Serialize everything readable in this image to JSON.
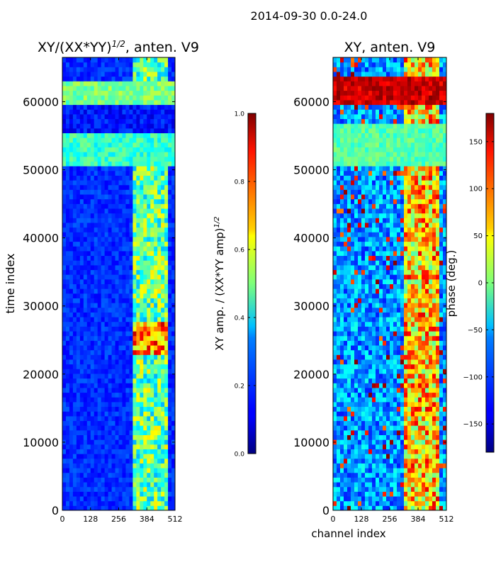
{
  "suptitle": "2014-09-30 0.0-24.0",
  "chart_data": [
    {
      "type": "heatmap",
      "title": "XY/(XX*YY)^1/2, anten. V9",
      "title_main": "XY/(XX*YY)",
      "title_exp": "1/2",
      "title_suffix": ", anten. V9",
      "xlabel": "",
      "ylabel": "time index",
      "xlim": [
        0,
        512
      ],
      "ylim": [
        0,
        66500
      ],
      "xticks": [
        0,
        128,
        256,
        384,
        512
      ],
      "yticks": [
        0,
        10000,
        20000,
        30000,
        40000,
        50000,
        60000
      ],
      "colorbar": {
        "label": "XY amp. / (XX*YY amp)^1/2",
        "label_main": "XY amp. / (XX*YY amp)",
        "label_exp": "1/2",
        "range": [
          0.0,
          1.0
        ],
        "ticks": [
          0.0,
          0.2,
          0.4,
          0.6,
          0.8,
          1.0
        ],
        "tick_labels": [
          "0.0",
          "0.2",
          "0.4",
          "0.6",
          "0.8",
          "1.0"
        ],
        "colormap": "jet"
      }
    },
    {
      "type": "heatmap",
      "title": "XY, anten. V9",
      "xlabel": "channel index",
      "ylabel": "",
      "xlim": [
        0,
        512
      ],
      "ylim": [
        0,
        66500
      ],
      "xticks": [
        0,
        128,
        256,
        384,
        512
      ],
      "yticks": [
        0,
        10000,
        20000,
        30000,
        40000,
        50000,
        60000
      ],
      "colorbar": {
        "label": "phase (deg.)",
        "range": [
          -180,
          180
        ],
        "ticks": [
          -150,
          -100,
          -50,
          0,
          50,
          100,
          150
        ],
        "tick_labels": [
          "−150",
          "−100",
          "−50",
          "0",
          "50",
          "100",
          "150"
        ],
        "colormap": "jet"
      }
    }
  ]
}
